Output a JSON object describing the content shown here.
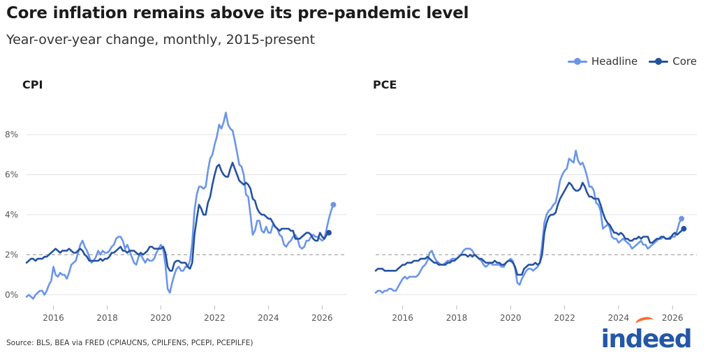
{
  "header": {
    "title": "Core inflation remains above its pre-pandemic level",
    "subtitle": "Year-over-year change, monthly, 2015-present"
  },
  "legend": {
    "headline_label": "Headline",
    "core_label": "Core"
  },
  "colors": {
    "headline": "#6b95e8",
    "core": "#2452a0",
    "reference": "#a6a6a6",
    "grid": "#e2e2e2"
  },
  "source": "Source: BLS, BEA via FRED (CPIAUCNS, CPILFENS, PCEPI, PCEPILFE)",
  "logo": {
    "text": "indeed"
  },
  "chart_data": [
    {
      "type": "line",
      "title": "CPI",
      "xlim": [
        2015.0,
        2026.9
      ],
      "ylim": [
        -0.6,
        9.5
      ],
      "x_ticks": [
        2016,
        2018,
        2020,
        2022,
        2024,
        2026
      ],
      "y_ticks": [
        0,
        2,
        4,
        6,
        8
      ],
      "y_tick_labels": [
        "0%",
        "2%",
        "4%",
        "6%",
        "8%"
      ],
      "reference_line": 2,
      "grid": true,
      "series": [
        {
          "name": "Headline",
          "start": 2015.0,
          "step_months": 1,
          "values": [
            -0.1,
            0.0,
            -0.1,
            -0.2,
            0.0,
            0.1,
            0.2,
            0.2,
            0.0,
            0.2,
            0.5,
            0.7,
            1.4,
            1.0,
            0.9,
            1.1,
            1.0,
            1.0,
            0.8,
            1.1,
            1.5,
            1.6,
            1.7,
            2.1,
            2.5,
            2.7,
            2.4,
            2.2,
            1.9,
            1.6,
            1.7,
            1.9,
            2.2,
            2.0,
            2.2,
            2.1,
            2.1,
            2.2,
            2.4,
            2.5,
            2.8,
            2.9,
            2.9,
            2.7,
            2.3,
            2.5,
            2.2,
            1.9,
            1.6,
            1.5,
            1.9,
            2.0,
            1.8,
            1.6,
            1.8,
            1.7,
            1.7,
            1.8,
            2.1,
            2.3,
            2.5,
            2.3,
            1.5,
            0.3,
            0.1,
            0.6,
            1.0,
            1.3,
            1.4,
            1.2,
            1.2,
            1.4,
            1.4,
            1.7,
            2.6,
            4.2,
            5.0,
            5.4,
            5.4,
            5.3,
            5.4,
            6.2,
            6.8,
            7.0,
            7.5,
            7.9,
            8.5,
            8.3,
            8.6,
            9.1,
            8.5,
            8.3,
            8.2,
            7.7,
            7.1,
            6.5,
            6.4,
            6.0,
            5.0,
            4.9,
            4.0,
            3.0,
            3.2,
            3.7,
            3.7,
            3.2,
            3.1,
            3.4,
            3.1,
            3.1,
            3.5,
            3.4,
            3.3,
            3.0,
            2.9,
            2.5,
            2.4,
            2.6,
            2.7,
            2.9,
            3.0,
            2.8,
            2.4,
            2.3,
            2.4,
            2.7,
            2.7,
            2.9,
            3.0,
            2.9,
            2.9,
            2.8,
            2.7,
            2.8,
            3.3,
            3.8,
            4.2,
            4.5
          ]
        },
        {
          "name": "Core",
          "start": 2015.0,
          "step_months": 1,
          "values": [
            1.6,
            1.7,
            1.8,
            1.8,
            1.7,
            1.8,
            1.8,
            1.8,
            1.9,
            1.9,
            2.0,
            2.1,
            2.2,
            2.3,
            2.2,
            2.1,
            2.2,
            2.2,
            2.2,
            2.3,
            2.2,
            2.1,
            2.1,
            2.2,
            2.3,
            2.2,
            2.0,
            1.9,
            1.7,
            1.7,
            1.7,
            1.7,
            1.7,
            1.8,
            1.7,
            1.8,
            1.8,
            1.9,
            2.1,
            2.1,
            2.2,
            2.3,
            2.4,
            2.2,
            2.2,
            2.1,
            2.2,
            2.2,
            2.2,
            2.1,
            2.0,
            2.1,
            2.0,
            2.1,
            2.2,
            2.4,
            2.4,
            2.3,
            2.3,
            2.3,
            2.3,
            2.4,
            2.1,
            1.4,
            1.2,
            1.2,
            1.6,
            1.7,
            1.7,
            1.6,
            1.6,
            1.6,
            1.4,
            1.3,
            1.6,
            3.0,
            3.8,
            4.5,
            4.3,
            4.0,
            4.0,
            4.6,
            4.9,
            5.5,
            6.0,
            6.4,
            6.5,
            6.2,
            6.0,
            5.9,
            5.9,
            6.3,
            6.6,
            6.3,
            6.0,
            5.7,
            5.6,
            5.5,
            5.6,
            5.5,
            5.3,
            4.8,
            4.7,
            4.3,
            4.1,
            4.0,
            4.0,
            3.9,
            3.8,
            3.8,
            3.6,
            3.4,
            3.3,
            3.2,
            3.3,
            3.3,
            3.3,
            3.3,
            3.2,
            3.2,
            2.8,
            2.8,
            2.8,
            2.9,
            3.0,
            3.1,
            3.1,
            3.0,
            2.8,
            2.7,
            2.7,
            3.1,
            2.9,
            2.8,
            3.0,
            3.1
          ]
        }
      ]
    },
    {
      "type": "line",
      "title": "PCE",
      "xlim": [
        2015.0,
        2026.9
      ],
      "ylim": [
        -0.6,
        9.5
      ],
      "x_ticks": [
        2016,
        2018,
        2020,
        2022,
        2024,
        2026
      ],
      "y_ticks": [
        0,
        2,
        4,
        6,
        8
      ],
      "y_tick_labels": [],
      "reference_line": 2,
      "grid": true,
      "series": [
        {
          "name": "Headline",
          "start": 2015.0,
          "step_months": 1,
          "values": [
            0.1,
            0.2,
            0.2,
            0.1,
            0.2,
            0.2,
            0.3,
            0.3,
            0.2,
            0.2,
            0.4,
            0.6,
            0.8,
            0.9,
            0.8,
            0.9,
            0.9,
            0.9,
            0.9,
            1.0,
            1.2,
            1.4,
            1.5,
            1.7,
            2.1,
            2.2,
            1.9,
            1.7,
            1.6,
            1.5,
            1.5,
            1.6,
            1.7,
            1.7,
            1.8,
            1.8,
            1.8,
            1.9,
            2.0,
            2.2,
            2.3,
            2.3,
            2.3,
            2.2,
            2.0,
            1.9,
            1.8,
            1.7,
            1.5,
            1.4,
            1.5,
            1.6,
            1.5,
            1.5,
            1.5,
            1.5,
            1.4,
            1.4,
            1.6,
            1.7,
            1.8,
            1.7,
            1.3,
            0.6,
            0.5,
            0.8,
            1.0,
            1.2,
            1.3,
            1.3,
            1.2,
            1.3,
            1.4,
            1.6,
            2.5,
            3.6,
            4.0,
            4.2,
            4.3,
            4.5,
            4.6,
            5.1,
            5.7,
            6.0,
            6.2,
            6.3,
            6.8,
            6.7,
            6.6,
            7.2,
            6.7,
            6.5,
            6.6,
            6.3,
            5.9,
            5.4,
            5.4,
            5.2,
            4.6,
            4.5,
            4.2,
            3.3,
            3.4,
            3.5,
            3.4,
            2.9,
            2.8,
            2.8,
            2.6,
            2.7,
            2.8,
            2.7,
            2.6,
            2.5,
            2.3,
            2.4,
            2.5,
            2.6,
            2.7,
            2.5,
            2.5,
            2.3,
            2.4,
            2.5,
            2.6,
            2.7,
            2.8,
            2.8,
            2.9,
            2.8,
            2.8,
            2.9,
            2.9,
            2.9,
            3.2,
            3.6,
            3.8
          ]
        },
        {
          "name": "Core",
          "start": 2015.0,
          "step_months": 1,
          "values": [
            1.2,
            1.3,
            1.3,
            1.3,
            1.2,
            1.2,
            1.2,
            1.2,
            1.2,
            1.2,
            1.3,
            1.4,
            1.5,
            1.5,
            1.6,
            1.6,
            1.6,
            1.7,
            1.7,
            1.7,
            1.8,
            1.8,
            1.8,
            1.9,
            1.8,
            1.7,
            1.6,
            1.6,
            1.5,
            1.5,
            1.5,
            1.5,
            1.6,
            1.6,
            1.7,
            1.7,
            1.8,
            1.9,
            2.0,
            2.0,
            2.0,
            1.9,
            2.0,
            1.9,
            2.0,
            1.9,
            1.8,
            1.8,
            1.7,
            1.6,
            1.6,
            1.6,
            1.6,
            1.7,
            1.6,
            1.6,
            1.5,
            1.5,
            1.6,
            1.7,
            1.7,
            1.6,
            1.4,
            1.0,
            1.0,
            1.0,
            1.3,
            1.4,
            1.5,
            1.5,
            1.5,
            1.6,
            1.5,
            1.6,
            2.0,
            3.1,
            3.6,
            3.9,
            4.0,
            4.0,
            4.1,
            4.5,
            4.8,
            5.0,
            5.2,
            5.4,
            5.6,
            5.5,
            5.3,
            5.2,
            5.2,
            5.3,
            5.6,
            5.4,
            5.1,
            4.9,
            4.9,
            4.8,
            4.8,
            4.8,
            4.5,
            4.1,
            3.8,
            3.6,
            3.5,
            3.3,
            3.1,
            3.1,
            3.0,
            3.1,
            3.0,
            2.8,
            2.8,
            2.7,
            2.7,
            2.8,
            2.8,
            2.9,
            2.8,
            2.9,
            2.9,
            2.9,
            2.6,
            2.6,
            2.7,
            2.8,
            2.8,
            2.9,
            2.9,
            2.8,
            2.8,
            2.8,
            3.0,
            3.1,
            3.0,
            3.1,
            3.2,
            3.3
          ]
        }
      ]
    }
  ]
}
